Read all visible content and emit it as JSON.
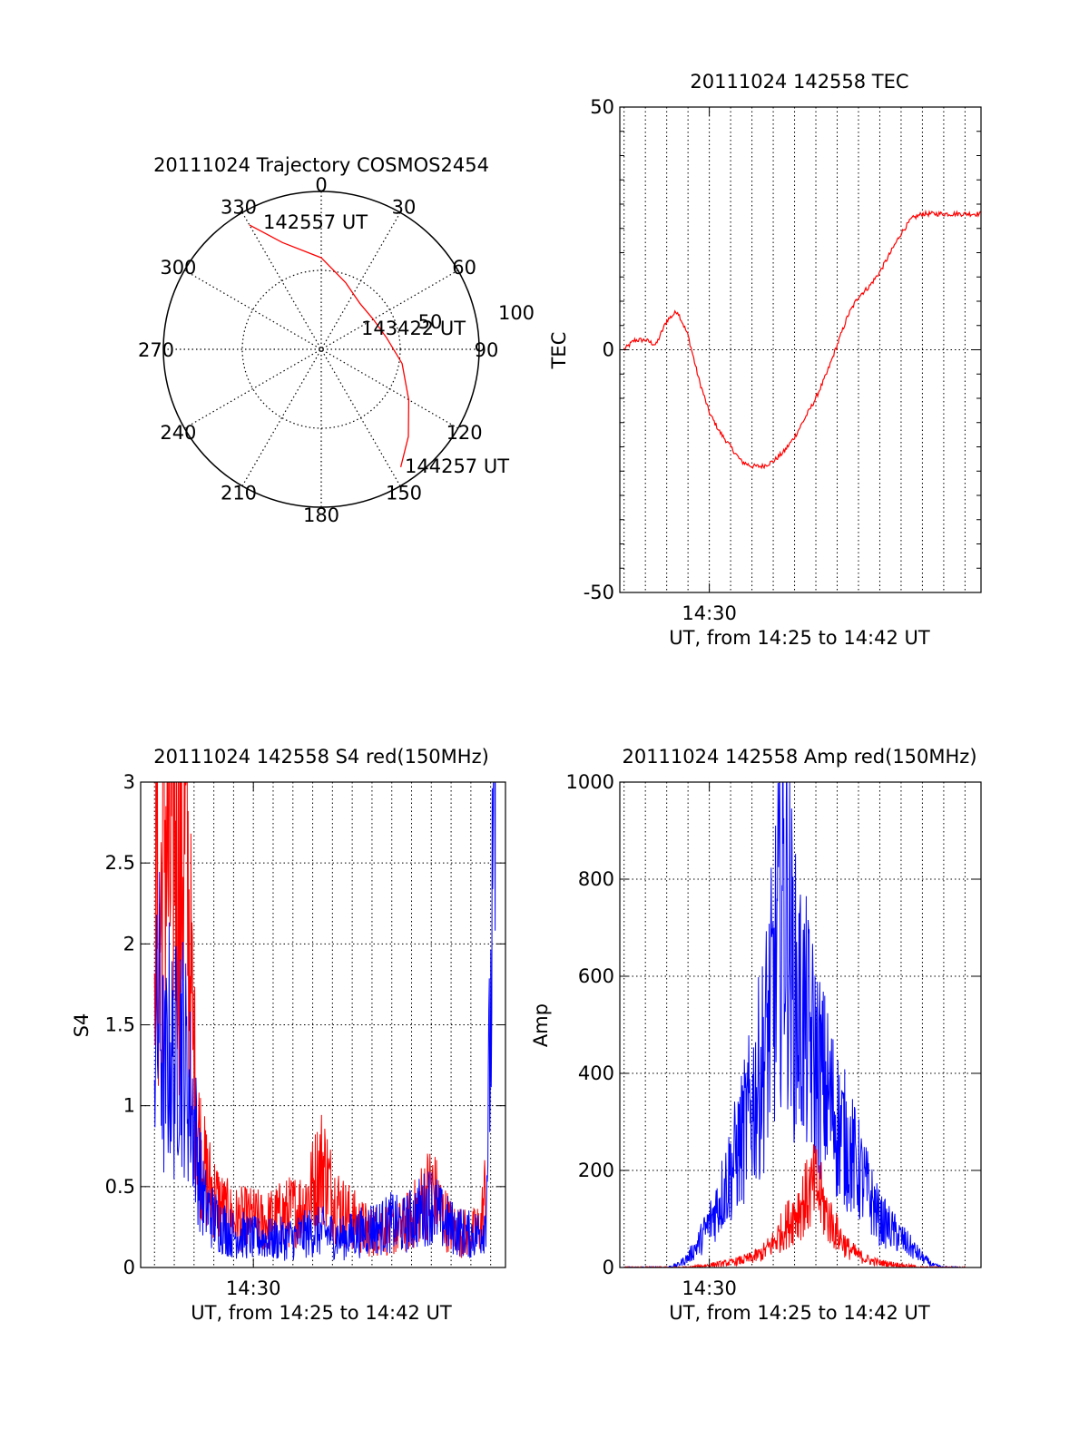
{
  "chart_data": [
    {
      "id": "trajectory",
      "type": "polar",
      "title": "20111024 Trajectory COSMOS2454",
      "azimuth_labels": [
        "0",
        "30",
        "60",
        "90",
        "120",
        "150",
        "180",
        "210",
        "240",
        "270",
        "300",
        "330"
      ],
      "elevation_ring_labels": [
        "50",
        "100"
      ],
      "grid": true,
      "series": [
        {
          "color": "#ff0000",
          "points_az_r": [
            [
              -30,
              0.91
            ],
            [
              -20,
              0.72
            ],
            [
              0,
              0.58
            ],
            [
              20,
              0.45
            ],
            [
              40,
              0.38
            ],
            [
              60,
              0.38
            ],
            [
              80,
              0.42
            ],
            [
              100,
              0.52
            ],
            [
              120,
              0.64
            ],
            [
              135,
              0.78
            ],
            [
              146,
              0.9
            ]
          ]
        }
      ],
      "annotations": [
        {
          "text": "142557 UT",
          "point": "start"
        },
        {
          "text": "143422 UT",
          "point": "mid"
        },
        {
          "text": "144257 UT",
          "point": "end"
        }
      ]
    },
    {
      "id": "tec",
      "type": "line",
      "title": "20111024 142558 TEC",
      "ylabel": "TEC",
      "xlabel": "UT, from 14:25 to 14:42 UT",
      "xlim": [
        14.43,
        14.7125
      ],
      "ylim": [
        -50,
        50
      ],
      "yticks": [
        "-50",
        "0",
        "50"
      ],
      "xticks": [
        {
          "x": 14.5,
          "label": "14:30"
        }
      ],
      "grid": true,
      "series": [
        {
          "color": "#ff0000",
          "x": [
            14.4333,
            14.4417,
            14.45,
            14.4583,
            14.4667,
            14.475,
            14.4833,
            14.4917,
            14.5,
            14.5083,
            14.5167,
            14.525,
            14.5333,
            14.5417,
            14.55,
            14.5583,
            14.5667,
            14.575,
            14.5833,
            14.5917,
            14.6,
            14.6083,
            14.6167,
            14.625,
            14.6333,
            14.6417,
            14.65,
            14.6583,
            14.6667,
            14.675,
            14.6833,
            14.6917,
            14.7,
            14.7083,
            14.7125
          ],
          "values": [
            0,
            2,
            2,
            1,
            6,
            8,
            3,
            -6,
            -13,
            -17,
            -20,
            -23,
            -24,
            -24,
            -23,
            -21,
            -18,
            -14,
            -10,
            -5,
            1,
            7,
            11,
            13,
            16,
            20,
            24,
            27,
            28,
            28,
            28,
            28,
            28,
            28,
            28
          ]
        }
      ]
    },
    {
      "id": "s4",
      "type": "line",
      "title": "20111024 142558 S4 red(150MHz)",
      "ylabel": "S4",
      "xlabel": "UT, from 14:25 to 14:42 UT",
      "xlim": [
        14.405,
        14.7125
      ],
      "ylim": [
        0,
        3
      ],
      "yticks": [
        "0",
        "0.5",
        "1",
        "1.5",
        "2",
        "2.5",
        "3"
      ],
      "xticks": [
        {
          "x": 14.5,
          "label": "14:30"
        }
      ],
      "grid": true,
      "series": [
        {
          "color": "#ff0000",
          "x": [
            14.4167,
            14.4208,
            14.425,
            14.4292,
            14.4333,
            14.4375,
            14.4417,
            14.4458,
            14.45,
            14.4542,
            14.4583,
            14.4667,
            14.475,
            14.4833,
            14.4917,
            14.5,
            14.5083,
            14.5167,
            14.525,
            14.5333,
            14.5417,
            14.55,
            14.5583,
            14.5667,
            14.575,
            14.5833,
            14.5917,
            14.6,
            14.6083,
            14.6167,
            14.625,
            14.6333,
            14.6417,
            14.65,
            14.6583,
            14.6667,
            14.675,
            14.6833,
            14.6917,
            14.6958
          ],
          "values": [
            2.8,
            1.9,
            2.9,
            2.3,
            3.0,
            2.4,
            2.7,
            2.1,
            1.2,
            0.8,
            0.6,
            0.45,
            0.35,
            0.3,
            0.3,
            0.3,
            0.28,
            0.3,
            0.33,
            0.35,
            0.38,
            0.5,
            0.65,
            0.45,
            0.35,
            0.3,
            0.25,
            0.22,
            0.25,
            0.23,
            0.25,
            0.3,
            0.4,
            0.5,
            0.35,
            0.25,
            0.22,
            0.2,
            0.25,
            0.5
          ]
        },
        {
          "color": "#0000ff",
          "x": [
            14.4167,
            14.4208,
            14.425,
            14.4292,
            14.4333,
            14.4375,
            14.4417,
            14.4458,
            14.45,
            14.4542,
            14.4583,
            14.4667,
            14.475,
            14.4833,
            14.4917,
            14.5,
            14.5083,
            14.5167,
            14.525,
            14.5333,
            14.5417,
            14.55,
            14.5583,
            14.5667,
            14.575,
            14.5833,
            14.5917,
            14.6,
            14.6083,
            14.6167,
            14.625,
            14.6333,
            14.6417,
            14.65,
            14.6583,
            14.6667,
            14.675,
            14.6833,
            14.6917,
            14.6958,
            14.7,
            14.7042
          ],
          "values": [
            1.3,
            1.6,
            1.1,
            1.4,
            1.2,
            1.5,
            1.3,
            1.1,
            0.9,
            0.6,
            0.4,
            0.3,
            0.25,
            0.2,
            0.2,
            0.18,
            0.18,
            0.17,
            0.18,
            0.18,
            0.2,
            0.22,
            0.22,
            0.2,
            0.18,
            0.2,
            0.22,
            0.25,
            0.25,
            0.28,
            0.25,
            0.3,
            0.35,
            0.4,
            0.3,
            0.25,
            0.22,
            0.2,
            0.22,
            0.3,
            1.5,
            3.0
          ]
        }
      ]
    },
    {
      "id": "amp",
      "type": "line",
      "title": "20111024 142558 Amp red(150MHz)",
      "ylabel": "Amp",
      "xlabel": "UT, from 14:25 to 14:42 UT",
      "xlim": [
        14.43,
        14.7125
      ],
      "ylim": [
        0,
        1000
      ],
      "yticks": [
        "0",
        "200",
        "400",
        "600",
        "800",
        "1000"
      ],
      "xticks": [
        {
          "x": 14.5,
          "label": "14:30"
        }
      ],
      "grid": true,
      "series": [
        {
          "color": "#0000ff",
          "x": [
            14.4333,
            14.45,
            14.4667,
            14.475,
            14.4833,
            14.4917,
            14.5,
            14.5083,
            14.5167,
            14.525,
            14.5333,
            14.5417,
            14.55,
            14.5583,
            14.5667,
            14.575,
            14.5833,
            14.5917,
            14.6,
            14.6083,
            14.6167,
            14.625,
            14.6333,
            14.6417,
            14.65,
            14.6583,
            14.6667,
            14.675,
            14.6833,
            14.6917,
            14.7
          ],
          "values": [
            0,
            0,
            0,
            5,
            20,
            50,
            90,
            140,
            200,
            260,
            330,
            420,
            560,
            800,
            560,
            500,
            420,
            360,
            300,
            250,
            200,
            150,
            100,
            80,
            60,
            40,
            20,
            5,
            0,
            0,
            0
          ]
        },
        {
          "color": "#ff0000",
          "x": [
            14.4333,
            14.4667,
            14.4833,
            14.5,
            14.5167,
            14.5333,
            14.5417,
            14.55,
            14.5583,
            14.5667,
            14.575,
            14.5833,
            14.5917,
            14.6,
            14.6083,
            14.6167,
            14.625,
            14.6333,
            14.65,
            14.6667,
            14.7
          ],
          "values": [
            0,
            0,
            0,
            5,
            10,
            20,
            30,
            50,
            80,
            110,
            140,
            170,
            110,
            70,
            40,
            25,
            15,
            10,
            5,
            0,
            0
          ]
        }
      ]
    }
  ]
}
